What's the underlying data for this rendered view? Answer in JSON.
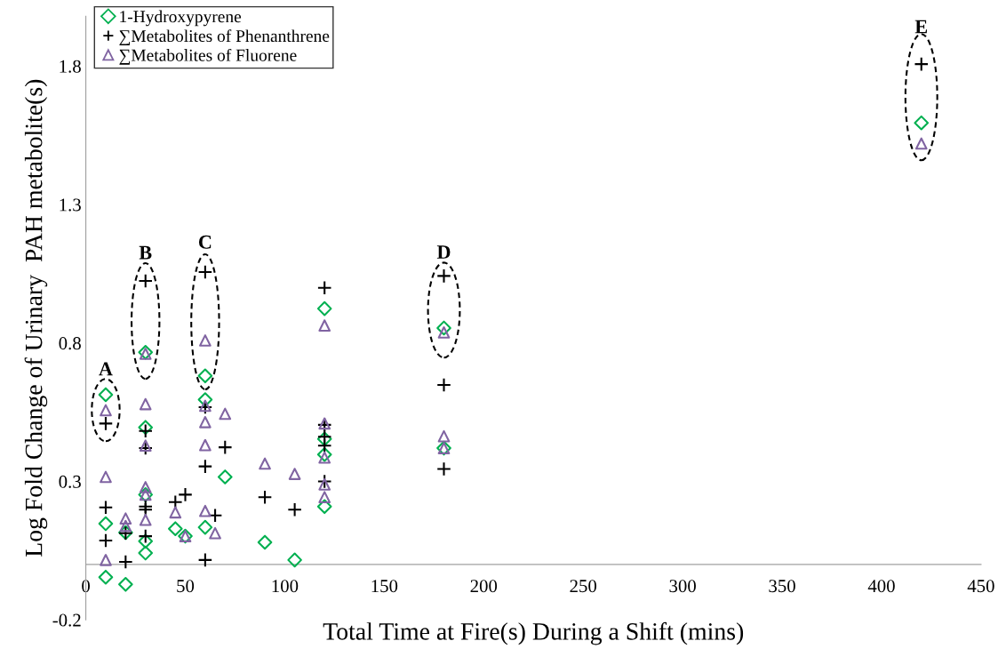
{
  "chart_data": {
    "type": "scatter",
    "xlabel": "Total Time at Fire(s) During a Shift (mins)",
    "ylabel": "Log Fold Change of Urinary  PAH metabolite(s)",
    "xlim": [
      0,
      450
    ],
    "xticks": [
      0,
      50,
      100,
      150,
      200,
      250,
      300,
      350,
      400,
      450
    ],
    "ylim": [
      -0.2,
      1.98
    ],
    "yticks": [
      -0.2,
      0.3,
      0.8,
      1.3,
      1.8
    ],
    "grid": false,
    "legend": "top left",
    "series": [
      {
        "name": "1-Hydroxypyrene",
        "color": "#00b050",
        "marker": "diamond",
        "x": [
          10,
          10,
          10,
          20,
          20,
          30,
          30,
          30,
          30,
          30,
          45,
          50,
          60,
          60,
          60,
          70,
          90,
          105,
          120,
          120,
          120,
          120,
          180,
          180,
          420
        ],
        "values": [
          0.613,
          0.147,
          -0.046,
          0.115,
          -0.072,
          0.766,
          0.495,
          0.252,
          0.084,
          0.041,
          0.129,
          0.102,
          0.681,
          0.595,
          0.134,
          0.316,
          0.08,
          0.016,
          0.924,
          0.453,
          0.397,
          0.209,
          0.854,
          0.42,
          1.595
        ]
      },
      {
        "name": "∑Metabolites of Phenanthrene",
        "color": "#000000",
        "marker": "cross",
        "x": [
          10,
          10,
          10,
          20,
          20,
          30,
          30,
          30,
          30,
          30,
          30,
          45,
          50,
          60,
          60,
          60,
          60,
          65,
          70,
          90,
          105,
          120,
          120,
          120,
          120,
          120,
          180,
          180,
          180,
          420
        ],
        "values": [
          0.509,
          0.206,
          0.086,
          0.113,
          0.009,
          1.024,
          0.482,
          0.42,
          0.209,
          0.198,
          0.102,
          0.225,
          0.252,
          1.056,
          0.568,
          0.354,
          0.016,
          0.177,
          0.423,
          0.243,
          0.198,
          0.999,
          0.504,
          0.461,
          0.429,
          0.3,
          1.042,
          0.648,
          0.345,
          1.807
        ]
      },
      {
        "name": "∑Metabolites of Fluorene",
        "color": "#8064a2",
        "marker": "triangle",
        "x": [
          10,
          10,
          10,
          20,
          20,
          30,
          30,
          30,
          30,
          30,
          30,
          45,
          50,
          60,
          60,
          60,
          60,
          60,
          65,
          70,
          90,
          105,
          120,
          120,
          120,
          120,
          120,
          180,
          180,
          180,
          420
        ],
        "values": [
          0.557,
          0.316,
          0.016,
          0.166,
          0.139,
          0.761,
          0.579,
          0.429,
          0.279,
          0.252,
          0.161,
          0.188,
          0.102,
          0.809,
          0.573,
          0.514,
          0.431,
          0.193,
          0.113,
          0.544,
          0.364,
          0.327,
          0.863,
          0.509,
          0.386,
          0.289,
          0.243,
          0.838,
          0.463,
          0.42,
          1.52
        ]
      }
    ],
    "annotations": [
      {
        "text": "A",
        "x": 10,
        "y": 0.613
      },
      {
        "text": "B",
        "x": 30,
        "y": 1.024
      },
      {
        "text": "C",
        "x": 60,
        "y": 1.056
      },
      {
        "text": "D",
        "x": 180,
        "y": 1.042
      },
      {
        "text": "E",
        "x": 420,
        "y": 1.807
      }
    ]
  }
}
